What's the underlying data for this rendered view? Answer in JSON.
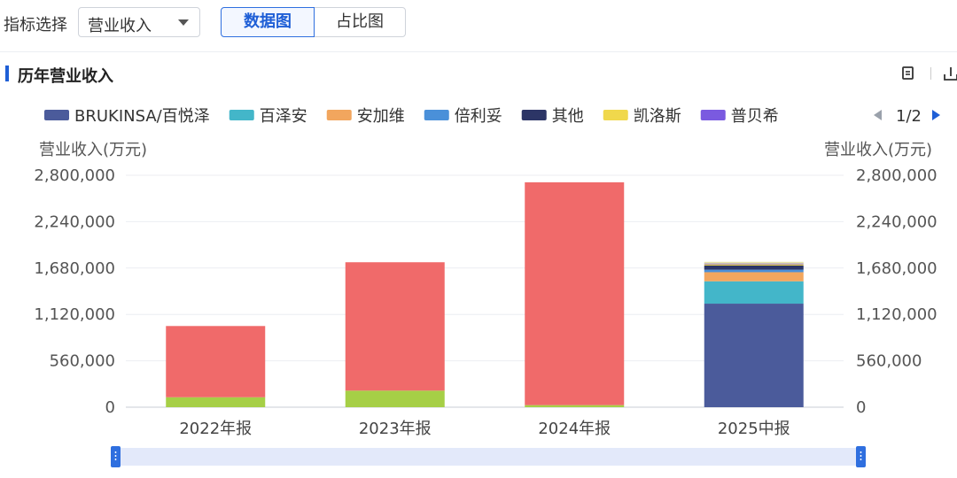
{
  "indicator": {
    "label": "指标选择",
    "selected": "营业收入",
    "tabs": [
      "数据图",
      "占比图"
    ],
    "active_tab": "数据图"
  },
  "section": {
    "title": "历年营业收入",
    "icons": [
      "copy-icon",
      "download-icon"
    ]
  },
  "legend": {
    "page": "1/2"
  },
  "colors": {
    "accent": "#1f5fd6",
    "BRUKINSA/百悦泽": "#4b5b9b",
    "百泽安": "#43b6c9",
    "安加维": "#f2a65e",
    "倍利妥": "#4a90d9",
    "其他": "#2c3566",
    "凯洛斯": "#f0d84c",
    "普贝希": "#7a5ae0",
    "red_series": "#f06a6a",
    "green_series": "#a6cf46"
  },
  "chart_data": {
    "type": "bar",
    "stacked": true,
    "categories": [
      "2022年报",
      "2023年报",
      "2024年报",
      "2025中报"
    ],
    "ylabel_left": "营业收入(万元)",
    "ylabel_right": "营业收入(万元)",
    "ylim": [
      0,
      2800000
    ],
    "yticks": [
      "0",
      "560,000",
      "1,120,000",
      "1,680,000",
      "2,240,000",
      "2,800,000"
    ],
    "grid": true,
    "legend_position": "top",
    "series": [
      {
        "name": "BRUKINSA/百悦泽",
        "color": "#4b5b9b",
        "values": [
          0,
          0,
          0,
          1250000
        ]
      },
      {
        "name": "百泽安",
        "color": "#43b6c9",
        "values": [
          0,
          0,
          0,
          270000
        ]
      },
      {
        "name": "安加维",
        "color": "#f2a65e",
        "values": [
          0,
          0,
          0,
          110000
        ]
      },
      {
        "name": "倍利妥",
        "color": "#4a90d9",
        "values": [
          0,
          0,
          0,
          30000
        ]
      },
      {
        "name": "其他",
        "color": "#2c3566",
        "values": [
          0,
          0,
          0,
          50000
        ]
      },
      {
        "name": "凯洛斯",
        "color": "#f0d84c",
        "values": [
          0,
          0,
          0,
          15000
        ]
      },
      {
        "name": "普贝希",
        "color": "#7a5ae0",
        "values": [
          0,
          0,
          0,
          10000
        ]
      },
      {
        "color": "#a6cf46",
        "values": [
          120000,
          200000,
          25000,
          0
        ]
      },
      {
        "color": "#f06a6a",
        "values": [
          860000,
          1550000,
          2690000,
          0
        ]
      },
      {
        "color": "#e8e4a8",
        "values": [
          0,
          0,
          0,
          20000
        ]
      }
    ]
  }
}
